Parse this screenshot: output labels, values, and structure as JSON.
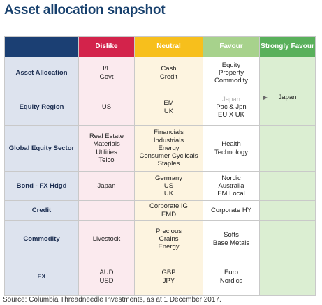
{
  "title": "Asset allocation snapshot",
  "headers": {
    "dislike": "Dislike",
    "neutral": "Neutral",
    "favour": "Favour",
    "strong": "Strongly Favour"
  },
  "rows": [
    {
      "label": "Asset Allocation",
      "dislike": [
        "I/L",
        "Govt"
      ],
      "neutral": [
        "Cash",
        "Credit"
      ],
      "favour": [
        "Equity",
        "Property",
        "Commodity"
      ],
      "strong": []
    },
    {
      "label": "Equity Region",
      "dislike": [
        "US"
      ],
      "neutral": [
        "EM",
        "UK"
      ],
      "favour_faded": "Japan",
      "favour": [
        "Pac & Jpn",
        "EU X UK"
      ],
      "strong": [
        "Japan"
      ]
    },
    {
      "label": "Global Equity Sector",
      "dislike": [
        "Real Estate",
        "Materials",
        "Utilities",
        "Telco"
      ],
      "neutral": [
        "Financials",
        "Industrials",
        "Energy",
        "Consumer Cyclicals",
        "Staples"
      ],
      "favour": [
        "Health",
        "Technology"
      ],
      "strong": []
    },
    {
      "label": "Bond - FX Hdgd",
      "dislike": [
        "Japan"
      ],
      "neutral": [
        "Germany",
        "US",
        "UK"
      ],
      "favour": [
        "Nordic",
        "Australia",
        "EM Local"
      ],
      "strong": []
    },
    {
      "label": "Credit",
      "dislike": [],
      "neutral": [
        "Corporate IG",
        "EMD"
      ],
      "favour": [
        "Corporate HY"
      ],
      "strong": []
    },
    {
      "label": "Commodity",
      "dislike": [
        "Livestock"
      ],
      "neutral": [
        "Precious",
        "Grains",
        "Energy"
      ],
      "favour": [
        "Softs",
        "Base Metals"
      ],
      "strong": []
    },
    {
      "label": "FX",
      "dislike": [
        "AUD",
        "USD"
      ],
      "neutral": [
        "GBP",
        "JPY"
      ],
      "favour": [
        "Euro",
        "Nordics"
      ],
      "strong": []
    }
  ],
  "source": "Source: Columbia Threadneedle Investments, as at 1 December 2017.",
  "colors": {
    "title": "#17406d",
    "corner": "#1b3f73",
    "dislike": "#d3234b",
    "neutral": "#f7bf1c",
    "favour": "#a7d28c",
    "strong": "#59b05b"
  }
}
